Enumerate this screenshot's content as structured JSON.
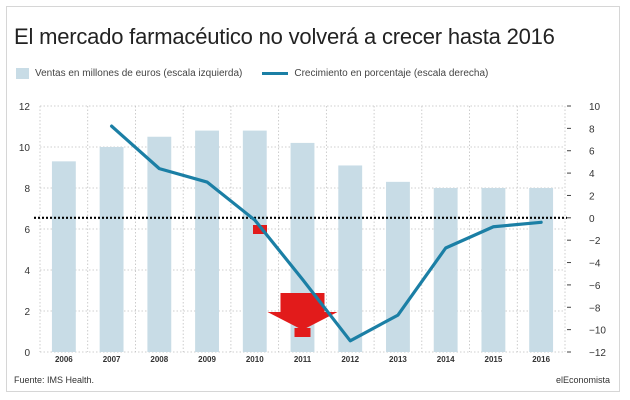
{
  "title": "El mercado farmacéutico no volverá a crecer hasta 2016",
  "source": "Fuente: IMS Health.",
  "brand": "elEconomista",
  "colors": {
    "bar": "#c8dce6",
    "line": "#1b7fa5",
    "arrow": "#e21b1b",
    "grid": "#c0c0c0",
    "zero": "#000000"
  },
  "chart_data": {
    "type": "bar",
    "categories": [
      "2006",
      "2007",
      "2008",
      "2009",
      "2010",
      "2011",
      "2012",
      "2013",
      "2014",
      "2015",
      "2016"
    ],
    "series": [
      {
        "name": "Ventas en millones de euros (escala izquierda)",
        "type": "bar",
        "axis": "left",
        "values": [
          9.3,
          10.0,
          10.5,
          10.8,
          10.8,
          10.2,
          9.1,
          8.3,
          8.0,
          8.0,
          8.0
        ]
      },
      {
        "name": "Crecimiento en porcentaje (escala derecha)",
        "type": "line",
        "axis": "right",
        "values": [
          null,
          8.2,
          4.4,
          3.2,
          -0.2,
          -5.5,
          -11.0,
          -8.7,
          -2.7,
          -0.8,
          -0.4
        ]
      }
    ],
    "y_left": {
      "ticks": [
        0,
        2,
        4,
        6,
        8,
        10,
        12
      ],
      "ylim": [
        0,
        12
      ]
    },
    "y_right": {
      "ticks": [
        10,
        8,
        6,
        4,
        2,
        0,
        -2,
        -4,
        -6,
        -8,
        -10,
        -12
      ],
      "ylim": [
        -12,
        10
      ]
    },
    "grid": true,
    "legend_position": "top"
  }
}
